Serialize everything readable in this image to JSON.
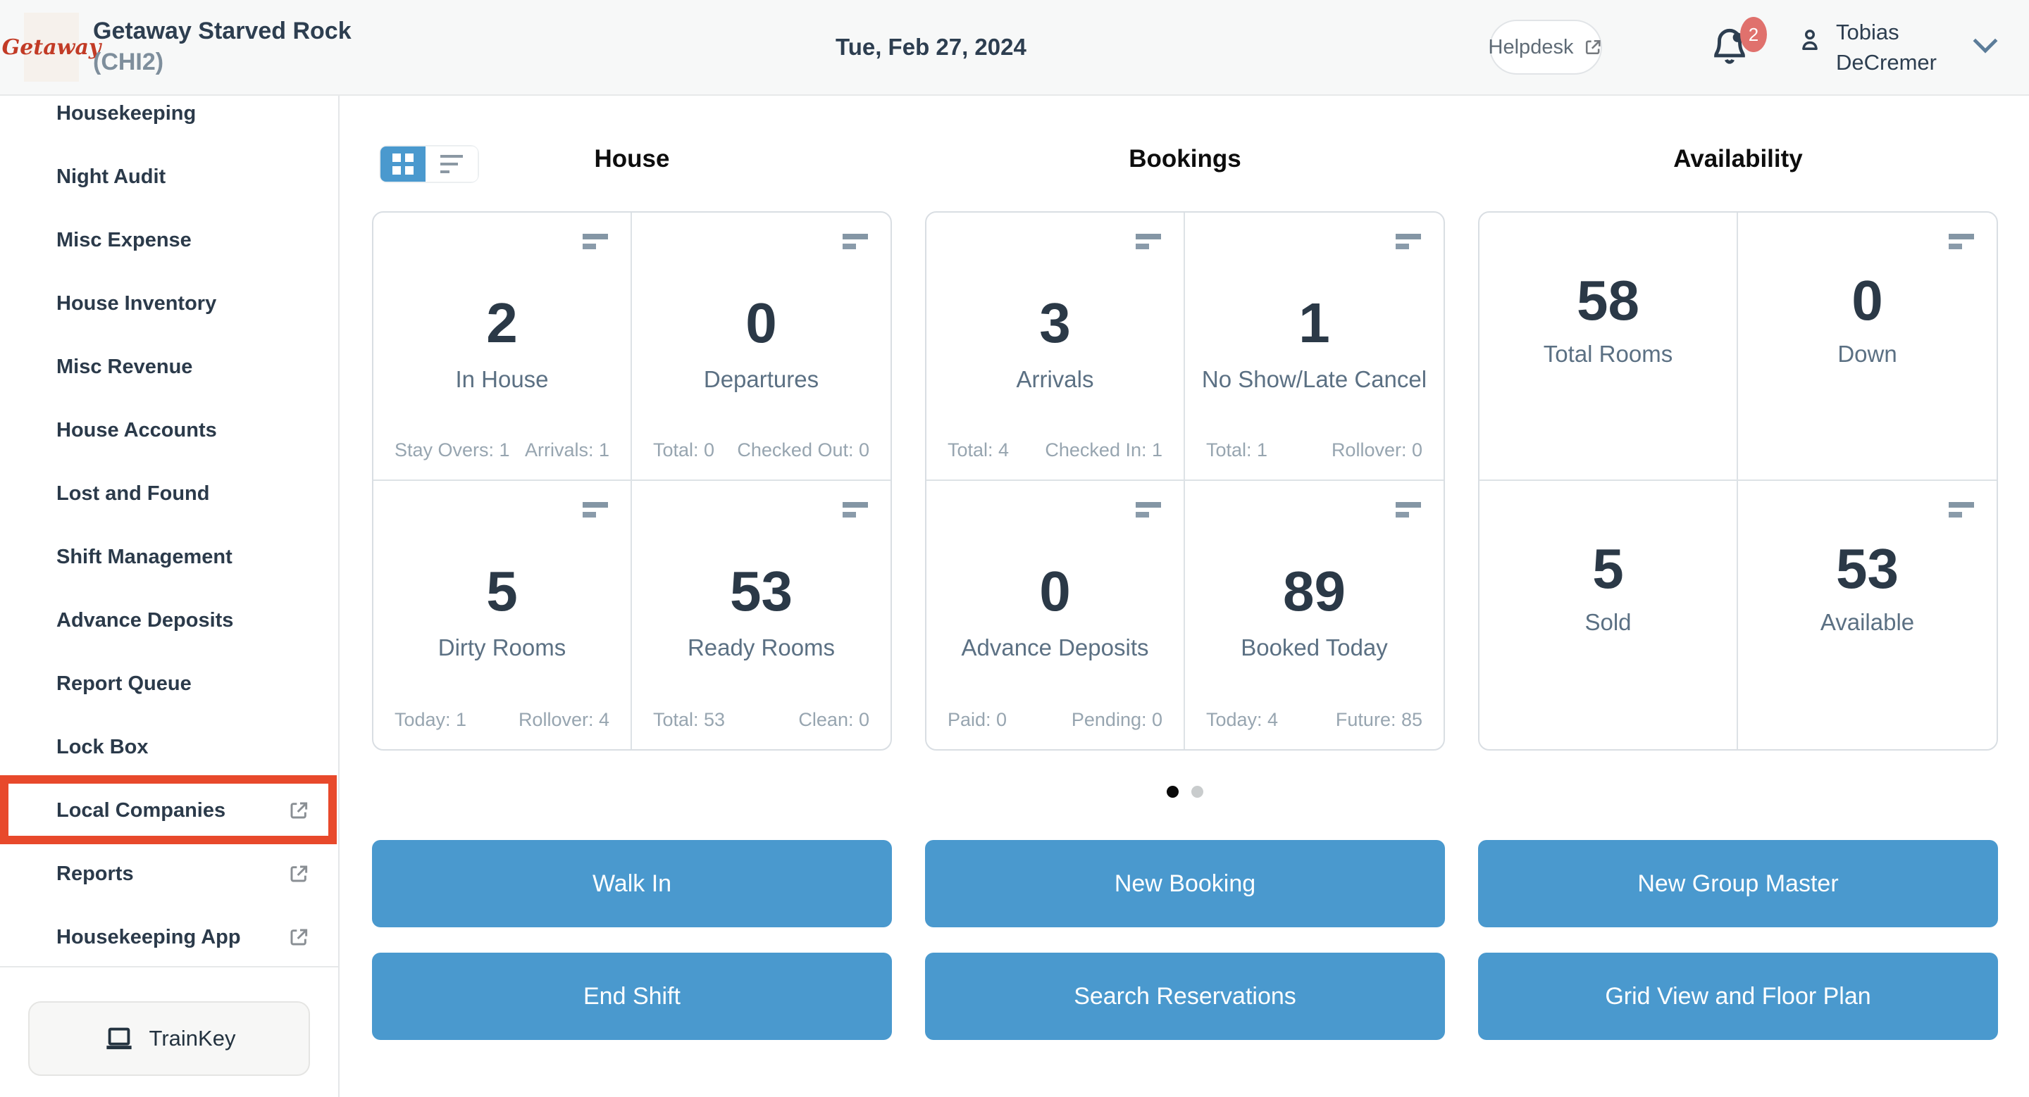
{
  "header": {
    "logo_text": "Getaway",
    "property_name": "Getaway Starved Rock",
    "property_code": "(CHI2)",
    "date": "Tue, Feb 27, 2024",
    "helpdesk_label": "Helpdesk",
    "notification_count": "2",
    "user_name_line1": "Tobias",
    "user_name_line2": "DeCremer"
  },
  "sidebar": {
    "items": [
      {
        "label": "Housekeeping",
        "external": false,
        "highlighted": false
      },
      {
        "label": "Night Audit",
        "external": false,
        "highlighted": false
      },
      {
        "label": "Misc Expense",
        "external": false,
        "highlighted": false
      },
      {
        "label": "House Inventory",
        "external": false,
        "highlighted": false
      },
      {
        "label": "Misc Revenue",
        "external": false,
        "highlighted": false
      },
      {
        "label": "House Accounts",
        "external": false,
        "highlighted": false
      },
      {
        "label": "Lost and Found",
        "external": false,
        "highlighted": false
      },
      {
        "label": "Shift Management",
        "external": false,
        "highlighted": false
      },
      {
        "label": "Advance Deposits",
        "external": false,
        "highlighted": false
      },
      {
        "label": "Report Queue",
        "external": false,
        "highlighted": false
      },
      {
        "label": "Lock Box",
        "external": false,
        "highlighted": false
      },
      {
        "label": "Local Companies",
        "external": true,
        "highlighted": true
      },
      {
        "label": "Reports",
        "external": true,
        "highlighted": false
      },
      {
        "label": "Housekeeping App",
        "external": true,
        "highlighted": false
      }
    ],
    "trainkey_label": "TrainKey"
  },
  "main": {
    "columns": [
      {
        "title": "House",
        "cards": [
          {
            "value": "2",
            "label": "In House",
            "left_stat": "Stay Overs: 1",
            "right_stat": "Arrivals: 1",
            "icon": true
          },
          {
            "value": "0",
            "label": "Departures",
            "left_stat": "Total: 0",
            "right_stat": "Checked Out: 0",
            "icon": true
          },
          {
            "value": "5",
            "label": "Dirty Rooms",
            "left_stat": "Today: 1",
            "right_stat": "Rollover: 4",
            "icon": true
          },
          {
            "value": "53",
            "label": "Ready Rooms",
            "left_stat": "Total: 53",
            "right_stat": "Clean: 0",
            "icon": true
          }
        ],
        "actions": [
          "Walk In",
          "End Shift"
        ]
      },
      {
        "title": "Bookings",
        "cards": [
          {
            "value": "3",
            "label": "Arrivals",
            "left_stat": "Total: 4",
            "right_stat": "Checked In: 1",
            "icon": true
          },
          {
            "value": "1",
            "label": "No Show/Late Cancel",
            "left_stat": "Total: 1",
            "right_stat": "Rollover: 0",
            "icon": true
          },
          {
            "value": "0",
            "label": "Advance Deposits",
            "left_stat": "Paid: 0",
            "right_stat": "Pending: 0",
            "icon": true
          },
          {
            "value": "89",
            "label": "Booked Today",
            "left_stat": "Today: 4",
            "right_stat": "Future: 85",
            "icon": true
          }
        ],
        "actions": [
          "New Booking",
          "Search Reservations"
        ]
      },
      {
        "title": "Availability",
        "cards": [
          {
            "value": "58",
            "label": "Total Rooms",
            "left_stat": null,
            "right_stat": null,
            "icon": false
          },
          {
            "value": "0",
            "label": "Down",
            "left_stat": null,
            "right_stat": null,
            "icon": true
          },
          {
            "value": "5",
            "label": "Sold",
            "left_stat": null,
            "right_stat": null,
            "icon": false
          },
          {
            "value": "53",
            "label": "Available",
            "left_stat": null,
            "right_stat": null,
            "icon": true
          }
        ],
        "actions": [
          "New Group Master",
          "Grid View and Floor Plan"
        ]
      }
    ],
    "pagination": {
      "dots": 2,
      "active_index": 0
    }
  },
  "colors": {
    "accent_blue": "#4a99ce",
    "annotation_red": "#e8492b",
    "badge_red": "#e0716d",
    "navy_text": "#2d3e50"
  }
}
